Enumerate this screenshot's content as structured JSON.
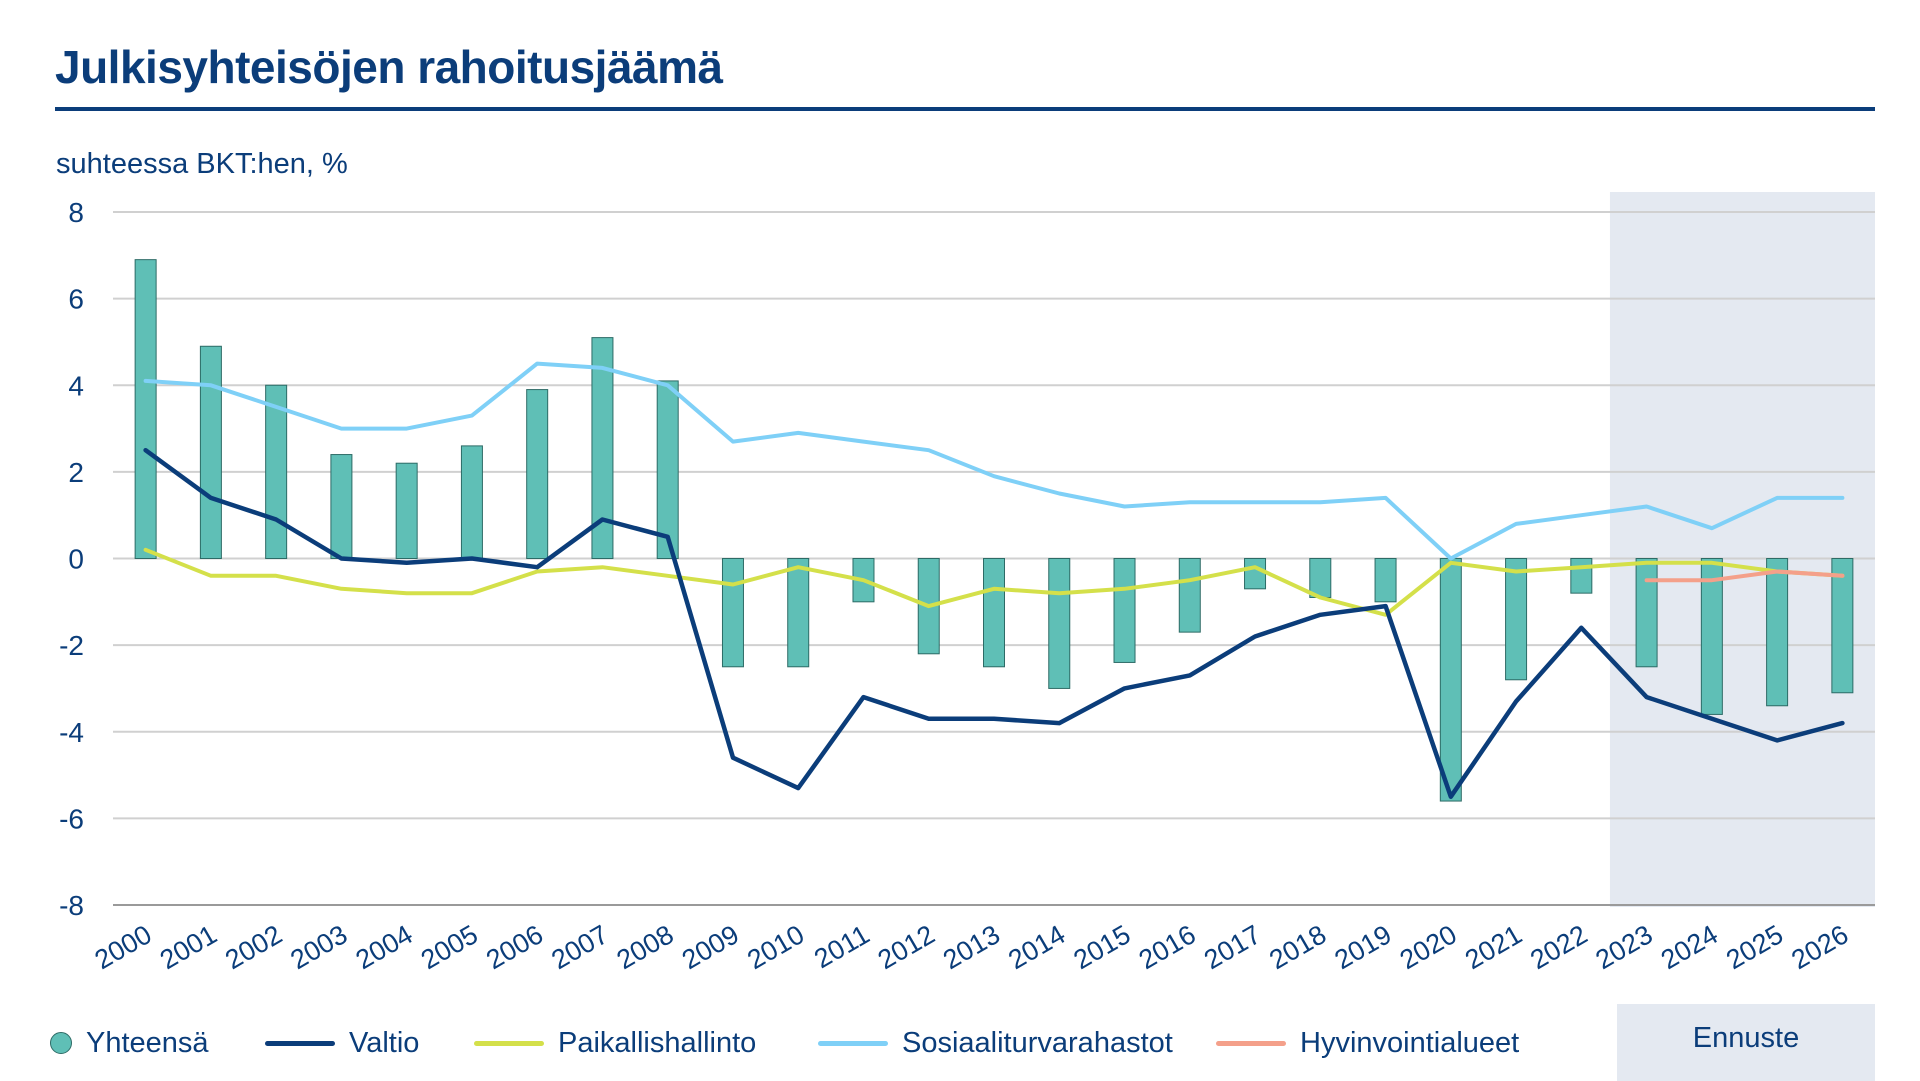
{
  "title": "Julkisyhteisöjen rahoitusjäämä",
  "subtitle": "suhteessa BKT:hen, %",
  "forecast_label": "Ennuste",
  "colors": {
    "title": "#0b3d7a",
    "bar": "#5fbfb6",
    "bar_border": "#2d6b66",
    "valtio": "#0b3d7a",
    "paikallishallinto": "#d4e04a",
    "sosiaaliturvarahastot": "#7fd0f7",
    "hyvinvointialueet": "#f4a08a",
    "forecast_shade": "#e4e9f1",
    "grid": "#d0d0d0"
  },
  "legend": [
    {
      "label": "Yhteensä",
      "kind": "dot",
      "color": "#5fbfb6",
      "icon": "bar-swatch-icon"
    },
    {
      "label": "Valtio",
      "kind": "line",
      "color": "#0b3d7a",
      "icon": "line-swatch-icon"
    },
    {
      "label": "Paikallishallinto",
      "kind": "line",
      "color": "#d4e04a",
      "icon": "line-swatch-icon"
    },
    {
      "label": "Sosiaaliturvarahastot",
      "kind": "line",
      "color": "#7fd0f7",
      "icon": "line-swatch-icon"
    },
    {
      "label": "Hyvinvointialueet",
      "kind": "line",
      "color": "#f4a08a",
      "icon": "line-swatch-icon"
    }
  ],
  "chart_data": {
    "type": "bar",
    "title": "Julkisyhteisöjen rahoitusjäämä",
    "subtitle": "suhteessa BKT:hen, %",
    "ylim": [
      -8,
      8
    ],
    "yticks": [
      "8",
      "6",
      "4",
      "2",
      "0",
      "-2",
      "-4",
      "-6",
      "-8"
    ],
    "grid": true,
    "legend_position": "bottom",
    "forecast_start": "2023",
    "categories": [
      "2000",
      "2001",
      "2002",
      "2003",
      "2004",
      "2005",
      "2006",
      "2007",
      "2008",
      "2009",
      "2010",
      "2011",
      "2012",
      "2013",
      "2014",
      "2015",
      "2016",
      "2017",
      "2018",
      "2019",
      "2020",
      "2021",
      "2022",
      "2023",
      "2024",
      "2025",
      "2026"
    ],
    "series": [
      {
        "name": "Yhteensä",
        "type": "bar",
        "values": [
          6.9,
          4.9,
          4.0,
          2.4,
          2.2,
          2.6,
          3.9,
          5.1,
          4.1,
          -2.5,
          -2.5,
          -1.0,
          -2.2,
          -2.5,
          -3.0,
          -2.4,
          -1.7,
          -0.7,
          -0.9,
          -1.0,
          -5.6,
          -2.8,
          -0.8,
          -2.5,
          -3.6,
          -3.4,
          -3.1
        ]
      },
      {
        "name": "Valtio",
        "type": "line",
        "values": [
          2.5,
          1.4,
          0.9,
          0.0,
          -0.1,
          0.0,
          -0.2,
          0.9,
          0.5,
          -4.6,
          -5.3,
          -3.2,
          -3.7,
          -3.7,
          -3.8,
          -3.0,
          -2.7,
          -1.8,
          -1.3,
          -1.1,
          -5.5,
          -3.3,
          -1.6,
          -3.2,
          -3.7,
          -4.2,
          -3.8
        ]
      },
      {
        "name": "Paikallishallinto",
        "type": "line",
        "values": [
          0.2,
          -0.4,
          -0.4,
          -0.7,
          -0.8,
          -0.8,
          -0.3,
          -0.2,
          -0.4,
          -0.6,
          -0.2,
          -0.5,
          -1.1,
          -0.7,
          -0.8,
          -0.7,
          -0.5,
          -0.2,
          -0.9,
          -1.3,
          -0.1,
          -0.3,
          -0.2,
          -0.1,
          -0.1,
          -0.3,
          -0.4
        ]
      },
      {
        "name": "Sosiaaliturvarahastot",
        "type": "line",
        "values": [
          4.1,
          4.0,
          3.5,
          3.0,
          3.0,
          3.3,
          4.5,
          4.4,
          4.0,
          2.7,
          2.9,
          2.7,
          2.5,
          1.9,
          1.5,
          1.2,
          1.3,
          1.3,
          1.3,
          1.4,
          0.0,
          0.8,
          1.0,
          1.2,
          0.7,
          1.4,
          1.4
        ]
      },
      {
        "name": "Hyvinvointialueet",
        "type": "line",
        "values": [
          null,
          null,
          null,
          null,
          null,
          null,
          null,
          null,
          null,
          null,
          null,
          null,
          null,
          null,
          null,
          null,
          null,
          null,
          null,
          null,
          null,
          null,
          null,
          -0.5,
          -0.5,
          -0.3,
          -0.4
        ]
      }
    ]
  }
}
